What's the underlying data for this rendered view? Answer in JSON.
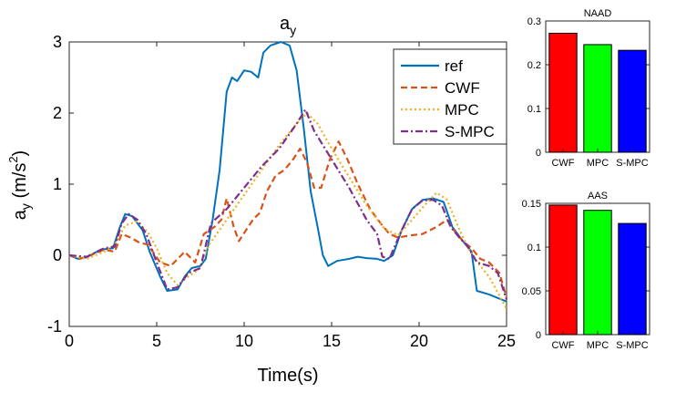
{
  "chart_data": [
    {
      "type": "line",
      "title_main": "a",
      "title_sub": "y",
      "xlabel": "Time(s)",
      "ylabel_main": "a",
      "ylabel_sub": "y",
      "ylabel_unit_open": " (m/s",
      "ylabel_unit_sup": "2",
      "ylabel_unit_close": ")",
      "xlim": [
        0,
        25
      ],
      "ylim": [
        -1,
        3
      ],
      "xticks": [
        "0",
        "5",
        "10",
        "15",
        "20",
        "25"
      ],
      "yticks": [
        "-1",
        "0",
        "1",
        "2",
        "3"
      ],
      "legend_position": "top-right",
      "series": [
        {
          "name": "ref",
          "color": "#0072BD",
          "dash": "",
          "points": [
            [
              0,
              0
            ],
            [
              0.5,
              -0.05
            ],
            [
              1,
              -0.03
            ],
            [
              1.8,
              0.08
            ],
            [
              2.5,
              0.1
            ],
            [
              2.9,
              0.4
            ],
            [
              3.2,
              0.58
            ],
            [
              3.6,
              0.55
            ],
            [
              4.2,
              0.35
            ],
            [
              4.6,
              0.05
            ],
            [
              5.2,
              -0.3
            ],
            [
              5.6,
              -0.5
            ],
            [
              6.2,
              -0.48
            ],
            [
              6.6,
              -0.3
            ],
            [
              7,
              -0.18
            ],
            [
              7.5,
              -0.15
            ],
            [
              7.8,
              -0.05
            ],
            [
              8.2,
              0.5
            ],
            [
              8.6,
              1.2
            ],
            [
              9,
              2.3
            ],
            [
              9.3,
              2.5
            ],
            [
              9.6,
              2.45
            ],
            [
              10,
              2.6
            ],
            [
              10.4,
              2.58
            ],
            [
              10.8,
              2.5
            ],
            [
              11.1,
              2.85
            ],
            [
              11.5,
              2.95
            ],
            [
              12.1,
              3.0
            ],
            [
              12.6,
              2.95
            ],
            [
              13,
              2.6
            ],
            [
              13.4,
              1.8
            ],
            [
              13.8,
              0.9
            ],
            [
              14.2,
              0.4
            ],
            [
              14.5,
              0.0
            ],
            [
              14.8,
              -0.15
            ],
            [
              15.3,
              -0.08
            ],
            [
              16,
              -0.05
            ],
            [
              16.5,
              -0.02
            ],
            [
              17,
              -0.04
            ],
            [
              17.6,
              -0.05
            ],
            [
              18,
              -0.08
            ],
            [
              18.5,
              0.0
            ],
            [
              19,
              0.35
            ],
            [
              19.6,
              0.65
            ],
            [
              20.2,
              0.78
            ],
            [
              20.8,
              0.8
            ],
            [
              21.4,
              0.75
            ],
            [
              21.9,
              0.4
            ],
            [
              22.5,
              0.2
            ],
            [
              23,
              0.05
            ],
            [
              23.3,
              -0.5
            ],
            [
              24,
              -0.55
            ],
            [
              25,
              -0.65
            ]
          ]
        },
        {
          "name": "CWF",
          "color": "#D95319",
          "dash": "7,4",
          "points": [
            [
              0,
              0
            ],
            [
              0.6,
              -0.05
            ],
            [
              1.2,
              0.0
            ],
            [
              2,
              0.08
            ],
            [
              2.6,
              0.05
            ],
            [
              3,
              0.3
            ],
            [
              3.5,
              0.25
            ],
            [
              4,
              0.18
            ],
            [
              4.5,
              0.15
            ],
            [
              5.2,
              -0.1
            ],
            [
              5.8,
              -0.15
            ],
            [
              6.2,
              -0.05
            ],
            [
              6.6,
              0.05
            ],
            [
              7.2,
              -0.1
            ],
            [
              7.7,
              0.3
            ],
            [
              8.3,
              0.4
            ],
            [
              8.7,
              0.5
            ],
            [
              9,
              0.8
            ],
            [
              9.4,
              0.4
            ],
            [
              9.7,
              0.2
            ],
            [
              10.1,
              0.35
            ],
            [
              10.5,
              0.5
            ],
            [
              10.9,
              0.6
            ],
            [
              11.3,
              0.9
            ],
            [
              11.8,
              1.12
            ],
            [
              12.3,
              1.2
            ],
            [
              12.8,
              1.35
            ],
            [
              13.2,
              1.5
            ],
            [
              13.6,
              1.3
            ],
            [
              14,
              0.95
            ],
            [
              14.4,
              0.95
            ],
            [
              14.9,
              1.35
            ],
            [
              15.4,
              1.6
            ],
            [
              15.9,
              1.35
            ],
            [
              16.5,
              1.0
            ],
            [
              17.2,
              0.65
            ],
            [
              17.8,
              0.45
            ],
            [
              18.3,
              0.3
            ],
            [
              18.8,
              0.25
            ],
            [
              19.5,
              0.28
            ],
            [
              20.2,
              0.3
            ],
            [
              21,
              0.4
            ],
            [
              21.6,
              0.5
            ],
            [
              22,
              0.35
            ],
            [
              22.5,
              0.2
            ],
            [
              23,
              0.1
            ],
            [
              23.5,
              -0.05
            ],
            [
              24,
              -0.1
            ],
            [
              24.6,
              -0.25
            ],
            [
              25,
              -0.6
            ]
          ]
        },
        {
          "name": "MPC",
          "color": "#EDB120",
          "dash": "2,3",
          "points": [
            [
              0,
              0
            ],
            [
              1,
              -0.05
            ],
            [
              2,
              0.05
            ],
            [
              2.6,
              0.15
            ],
            [
              3.2,
              0.42
            ],
            [
              3.9,
              0.48
            ],
            [
              4.5,
              0.32
            ],
            [
              5,
              0.1
            ],
            [
              5.6,
              -0.25
            ],
            [
              6.2,
              -0.42
            ],
            [
              6.8,
              -0.3
            ],
            [
              7.4,
              -0.2
            ],
            [
              8,
              0.15
            ],
            [
              9,
              0.5
            ],
            [
              10,
              0.85
            ],
            [
              11,
              1.2
            ],
            [
              12,
              1.55
            ],
            [
              13,
              1.85
            ],
            [
              13.6,
              2.0
            ],
            [
              14.2,
              1.85
            ],
            [
              15,
              1.5
            ],
            [
              16,
              1.1
            ],
            [
              17,
              0.7
            ],
            [
              18,
              0.38
            ],
            [
              18.8,
              0.28
            ],
            [
              19.6,
              0.5
            ],
            [
              20.3,
              0.7
            ],
            [
              21,
              0.88
            ],
            [
              21.6,
              0.78
            ],
            [
              22.2,
              0.42
            ],
            [
              22.8,
              0.1
            ],
            [
              23.4,
              -0.12
            ],
            [
              24,
              -0.3
            ],
            [
              25,
              -0.75
            ]
          ]
        },
        {
          "name": "S-MPC",
          "color": "#7E2F8E",
          "dash": "8,3,2,3",
          "points": [
            [
              0,
              0
            ],
            [
              1,
              -0.02
            ],
            [
              2,
              0.1
            ],
            [
              2.6,
              0.12
            ],
            [
              3,
              0.45
            ],
            [
              3.4,
              0.58
            ],
            [
              3.9,
              0.5
            ],
            [
              4.4,
              0.3
            ],
            [
              5,
              -0.1
            ],
            [
              5.6,
              -0.48
            ],
            [
              6.2,
              -0.45
            ],
            [
              6.8,
              -0.25
            ],
            [
              7.5,
              -0.18
            ],
            [
              8.1,
              0.45
            ],
            [
              9,
              0.65
            ],
            [
              10,
              0.95
            ],
            [
              11,
              1.25
            ],
            [
              12,
              1.5
            ],
            [
              13,
              1.85
            ],
            [
              13.5,
              2.05
            ],
            [
              14,
              1.75
            ],
            [
              15,
              1.35
            ],
            [
              16,
              0.95
            ],
            [
              17,
              0.5
            ],
            [
              17.6,
              0.3
            ],
            [
              17.9,
              -0.02
            ],
            [
              18.3,
              -0.05
            ],
            [
              19,
              0.35
            ],
            [
              19.6,
              0.65
            ],
            [
              20.2,
              0.77
            ],
            [
              20.8,
              0.78
            ],
            [
              21.3,
              0.7
            ],
            [
              21.8,
              0.4
            ],
            [
              22.3,
              0.25
            ],
            [
              22.8,
              0.12
            ],
            [
              23.3,
              -0.1
            ],
            [
              24,
              -0.15
            ],
            [
              24.5,
              -0.25
            ],
            [
              25,
              -0.62
            ]
          ]
        }
      ]
    },
    {
      "type": "bar",
      "title": "NAAD",
      "categories": [
        "CWF",
        "MPC",
        "S-MPC"
      ],
      "values": [
        0.272,
        0.246,
        0.233
      ],
      "colors": [
        "#FF0000",
        "#00FF00",
        "#0000FF"
      ],
      "ylim": [
        0,
        0.3
      ],
      "yticks": [
        "0",
        "0.1",
        "0.2",
        "0.3"
      ]
    },
    {
      "type": "bar",
      "title": "AAS",
      "categories": [
        "CWF",
        "MPC",
        "S-MPC"
      ],
      "values": [
        0.148,
        0.142,
        0.127
      ],
      "colors": [
        "#FF0000",
        "#00FF00",
        "#0000FF"
      ],
      "ylim": [
        0,
        0.15
      ],
      "yticks": [
        "0",
        "0.05",
        "0.1",
        "0.15"
      ]
    }
  ]
}
